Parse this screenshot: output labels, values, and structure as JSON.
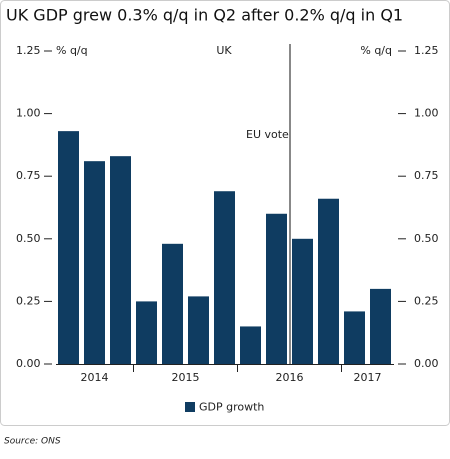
{
  "chart_data": {
    "type": "bar",
    "title": "UK GDP grew 0.3% q/q in Q2 after 0.2% q/q in Q1",
    "subtitle": "UK",
    "y_unit": "% q/q",
    "annotation": "EU vote",
    "source": "Source: ONS",
    "groups": [
      {
        "label": "2014",
        "bars": 3
      },
      {
        "label": "2015",
        "bars": 4
      },
      {
        "label": "2016",
        "bars": 4
      },
      {
        "label": "2017",
        "bars": 2
      }
    ],
    "series": [
      {
        "name": "GDP growth",
        "color": "#0f3c61",
        "values": [
          0.93,
          0.81,
          0.83,
          0.25,
          0.48,
          0.27,
          0.69,
          0.15,
          0.6,
          0.5,
          0.66,
          0.21,
          0.3
        ]
      }
    ],
    "ylim": [
      0,
      1.25
    ],
    "yticks": [
      {
        "value": 0,
        "label": "0.00"
      },
      {
        "value": 0.25,
        "label": "0.25"
      },
      {
        "value": 0.5,
        "label": "0.50"
      },
      {
        "value": 0.75,
        "label": "0.75"
      },
      {
        "value": 1,
        "label": "1.00"
      },
      1.25
    ],
    "legend": "bottom"
  }
}
